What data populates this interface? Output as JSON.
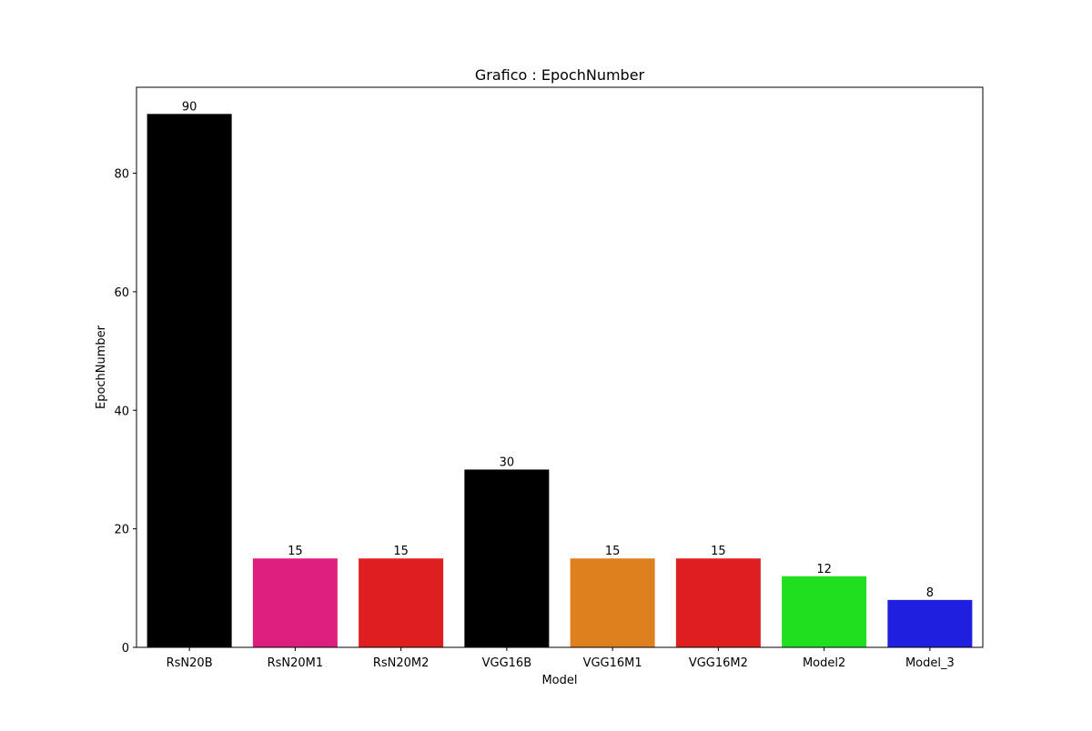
{
  "chart_data": {
    "type": "bar",
    "title": "Grafico : EpochNumber",
    "xlabel": "Model",
    "ylabel": "EpochNumber",
    "categories": [
      "RsN20B",
      "RsN20M1",
      "RsN20M2",
      "VGG16B",
      "VGG16M1",
      "VGG16M2",
      "Model2",
      "Model_3"
    ],
    "values": [
      90,
      15,
      15,
      30,
      15,
      15,
      12,
      8
    ],
    "data_labels": [
      "90",
      "15",
      "15",
      "30",
      "15",
      "15",
      "12",
      "8"
    ],
    "colors": [
      "#000000",
      "#df1f80",
      "#df1f1f",
      "#000000",
      "#df801f",
      "#df1f1f",
      "#1fdf1f",
      "#1f1fdf"
    ],
    "yticks": [
      0,
      20,
      40,
      60,
      80
    ],
    "ylim": [
      0,
      94.5
    ],
    "grid": false,
    "legend": "none"
  }
}
